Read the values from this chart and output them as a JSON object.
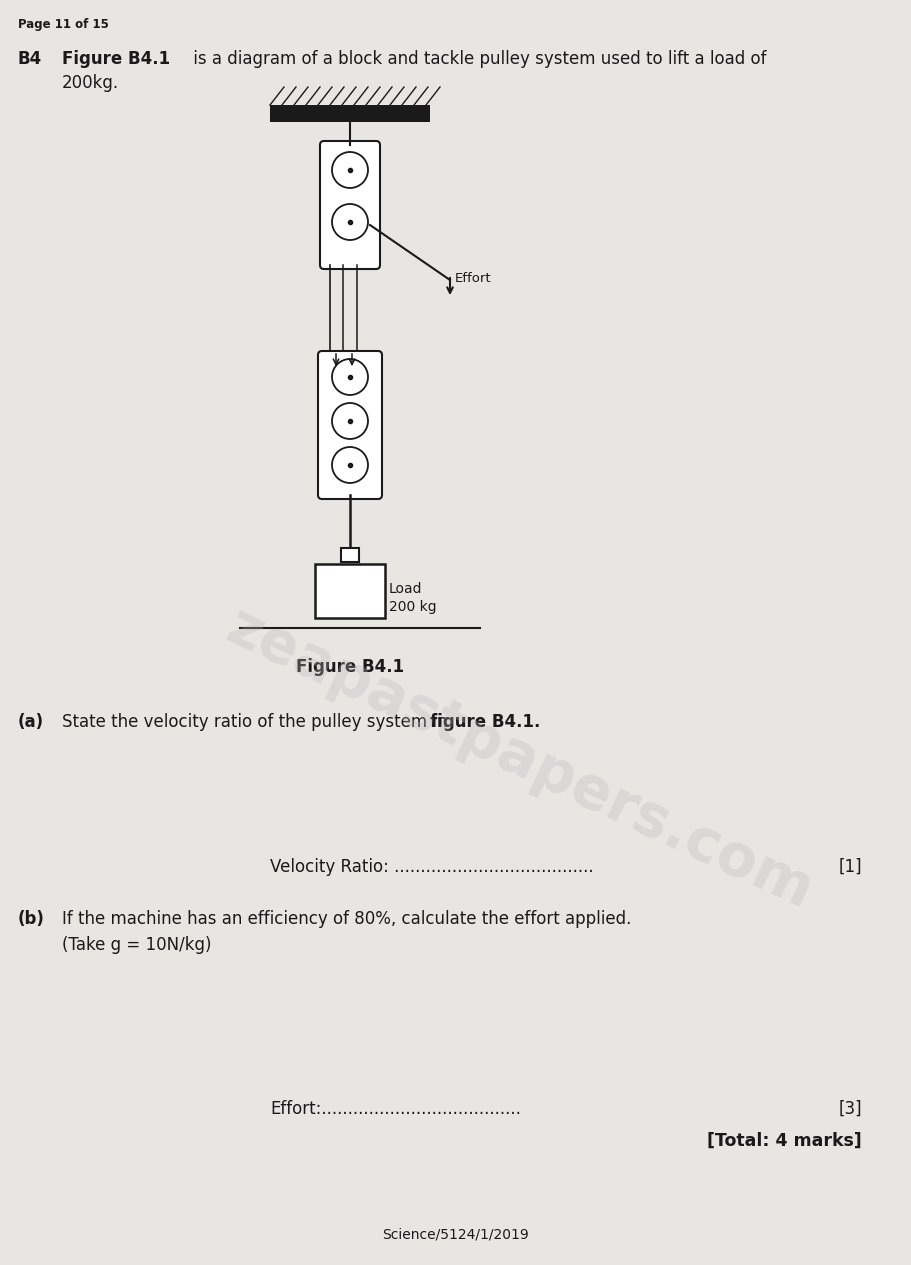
{
  "page_header": "Page 11 of 15",
  "question_label": "B4",
  "intro_bold": "Figure B4.1",
  "intro_normal": " is a diagram of a block and tackle pulley system used to lift a load of",
  "intro_line2": "200kg.",
  "figure_caption": "Figure B4.1",
  "part_a_label": "(a)",
  "part_a_text": "State the velocity ratio of the pulley system in ",
  "part_a_bold": "figure B4.1.",
  "vr_label": "Velocity Ratio:",
  "vr_dots": "......................................",
  "vr_marks": "[1]",
  "part_b_label": "(b)",
  "part_b_line1": "If the machine has an efficiency of 80%, calculate the effort applied.",
  "part_b_line2": "(Take g = 10N/kg)",
  "effort_label": "Effort:",
  "effort_dots": "......................................",
  "effort_marks": "[3]",
  "total_marks": "[Total: 4 marks]",
  "footer": "Science/5124/1/2019",
  "effort_tag": "Effort",
  "load_line1": "Load",
  "load_line2": "200 kg",
  "bg_color": "#e8e6e3",
  "text_color": "#1a1a1a",
  "diagram_color": "#1a1a1a",
  "watermark_text": "zeapastpapers.com",
  "watermark_color": "#b8b8b8"
}
